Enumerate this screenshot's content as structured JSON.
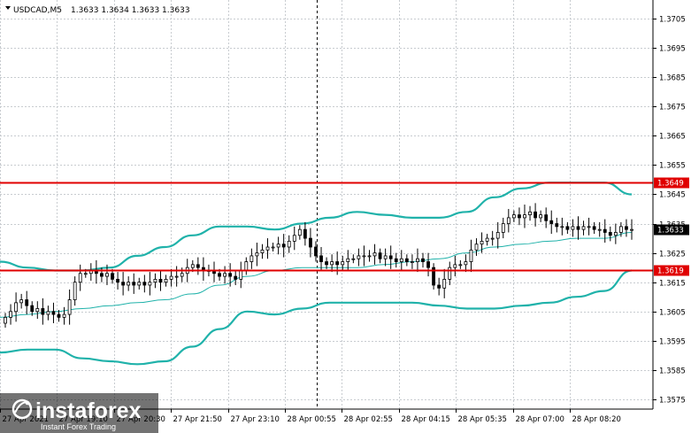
{
  "header": {
    "symbol": "USDCAD,M5",
    "ohlc": "1.3633 1.3634 1.3633 1.3633"
  },
  "watermark": {
    "brand": "instaforex",
    "tagline": "Instant Forex Trading"
  },
  "colors": {
    "bollinger": "#20b2aa",
    "level": "#e00000",
    "price_badge_bg": "#000000",
    "grid": "#c8ccd0"
  },
  "chart_data": {
    "type": "candlestick",
    "symbol": "USDCAD",
    "timeframe": "M5",
    "ylim": [
      1.357,
      1.371
    ],
    "y_ticks": [
      "1.3705",
      "1.3695",
      "1.3685",
      "1.3675",
      "1.3665",
      "1.3655",
      "1.3645",
      "1.3635",
      "1.3625",
      "1.3615",
      "1.3605",
      "1.3595",
      "1.3585",
      "1.3575"
    ],
    "x_ticks": [
      "27 Apr 2021",
      "27 Apr 19:10",
      "27 Apr 20:30",
      "27 Apr 21:50",
      "27 Apr 23:10",
      "28 Apr 00:55",
      "28 Apr 02:55",
      "28 Apr 04:15",
      "28 Apr 05:35",
      "28 Apr 07:00",
      "28 Apr 08:20"
    ],
    "levels": [
      {
        "label": "1.3649",
        "value": 1.3649
      },
      {
        "label": "1.3619",
        "value": 1.3619
      }
    ],
    "current_price": {
      "label": "1.3633",
      "value": 1.3633
    },
    "close": [
      1.3603,
      1.3605,
      1.3608,
      1.3609,
      1.3607,
      1.3605,
      1.3606,
      1.3604,
      1.3605,
      1.3604,
      1.3603,
      1.3604,
      1.3609,
      1.3615,
      1.3618,
      1.3618,
      1.3619,
      1.3618,
      1.3617,
      1.3618,
      1.3616,
      1.3615,
      1.3614,
      1.3615,
      1.3614,
      1.3615,
      1.3614,
      1.3615,
      1.3616,
      1.3615,
      1.3616,
      1.3617,
      1.3617,
      1.3618,
      1.362,
      1.3621,
      1.362,
      1.3619,
      1.3619,
      1.3618,
      1.3617,
      1.3618,
      1.3617,
      1.3616,
      1.3619,
      1.3622,
      1.3624,
      1.3625,
      1.3626,
      1.3627,
      1.3627,
      1.3628,
      1.3627,
      1.3629,
      1.3631,
      1.3633,
      1.363,
      1.3627,
      1.3624,
      1.3622,
      1.3621,
      1.3622,
      1.3621,
      1.3622,
      1.3623,
      1.3623,
      1.3624,
      1.3624,
      1.3624,
      1.3625,
      1.3623,
      1.3624,
      1.3623,
      1.3622,
      1.3623,
      1.3622,
      1.3622,
      1.3623,
      1.3622,
      1.362,
      1.3614,
      1.3613,
      1.3616,
      1.362,
      1.3621,
      1.3621,
      1.3622,
      1.3626,
      1.3628,
      1.3629,
      1.363,
      1.363,
      1.3632,
      1.3635,
      1.3637,
      1.3638,
      1.3637,
      1.3638,
      1.3639,
      1.3637,
      1.3638,
      1.3636,
      1.3635,
      1.3634,
      1.3634,
      1.3633,
      1.3634,
      1.3633,
      1.3634,
      1.3634,
      1.3633,
      1.3633,
      1.3632,
      1.3631,
      1.3632,
      1.3634,
      1.3633,
      1.3633
    ],
    "bollinger": {
      "upper": [
        1.3622,
        1.362,
        1.3619,
        1.3619,
        1.362,
        1.3624,
        1.3627,
        1.3631,
        1.3634,
        1.3634,
        1.3633,
        1.3635,
        1.3637,
        1.3639,
        1.3638,
        1.3637,
        1.3637,
        1.3639,
        1.3644,
        1.3647,
        1.3649,
        1.3649,
        1.3649,
        1.3645
      ],
      "middle": [
        1.3603,
        1.3604,
        1.3605,
        1.3606,
        1.3607,
        1.3608,
        1.3609,
        1.3611,
        1.3614,
        1.3617,
        1.3619,
        1.362,
        1.362,
        1.362,
        1.3621,
        1.3622,
        1.3623,
        1.3625,
        1.3627,
        1.3628,
        1.3629,
        1.363,
        1.363,
        1.3632
      ],
      "lower": [
        1.3591,
        1.3592,
        1.3592,
        1.3589,
        1.3588,
        1.3587,
        1.3588,
        1.3593,
        1.3599,
        1.3605,
        1.3604,
        1.3606,
        1.3608,
        1.3608,
        1.3608,
        1.3608,
        1.3607,
        1.3606,
        1.3606,
        1.3607,
        1.3608,
        1.361,
        1.3612,
        1.3619
      ]
    }
  }
}
